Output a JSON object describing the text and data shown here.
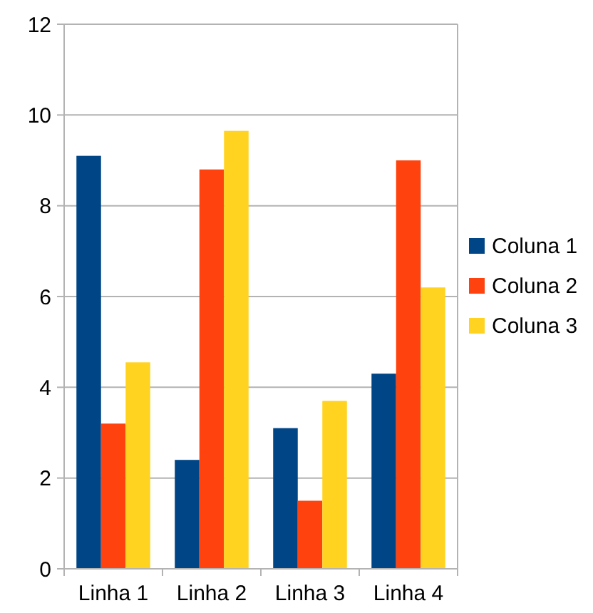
{
  "chart_data": {
    "type": "bar",
    "categories": [
      "Linha 1",
      "Linha 2",
      "Linha 3",
      "Linha 4"
    ],
    "series": [
      {
        "name": "Coluna 1",
        "color": "#004586",
        "values": [
          9.1,
          2.4,
          3.1,
          4.3
        ]
      },
      {
        "name": "Coluna 2",
        "color": "#ff420e",
        "values": [
          3.2,
          8.8,
          1.5,
          9.0
        ]
      },
      {
        "name": "Coluna 3",
        "color": "#ffd320",
        "values": [
          4.55,
          9.65,
          3.7,
          6.2
        ]
      }
    ],
    "ylim": [
      0,
      12
    ],
    "yticks": [
      0,
      2,
      4,
      6,
      8,
      10,
      12
    ],
    "grid": "y",
    "legend": "right"
  }
}
